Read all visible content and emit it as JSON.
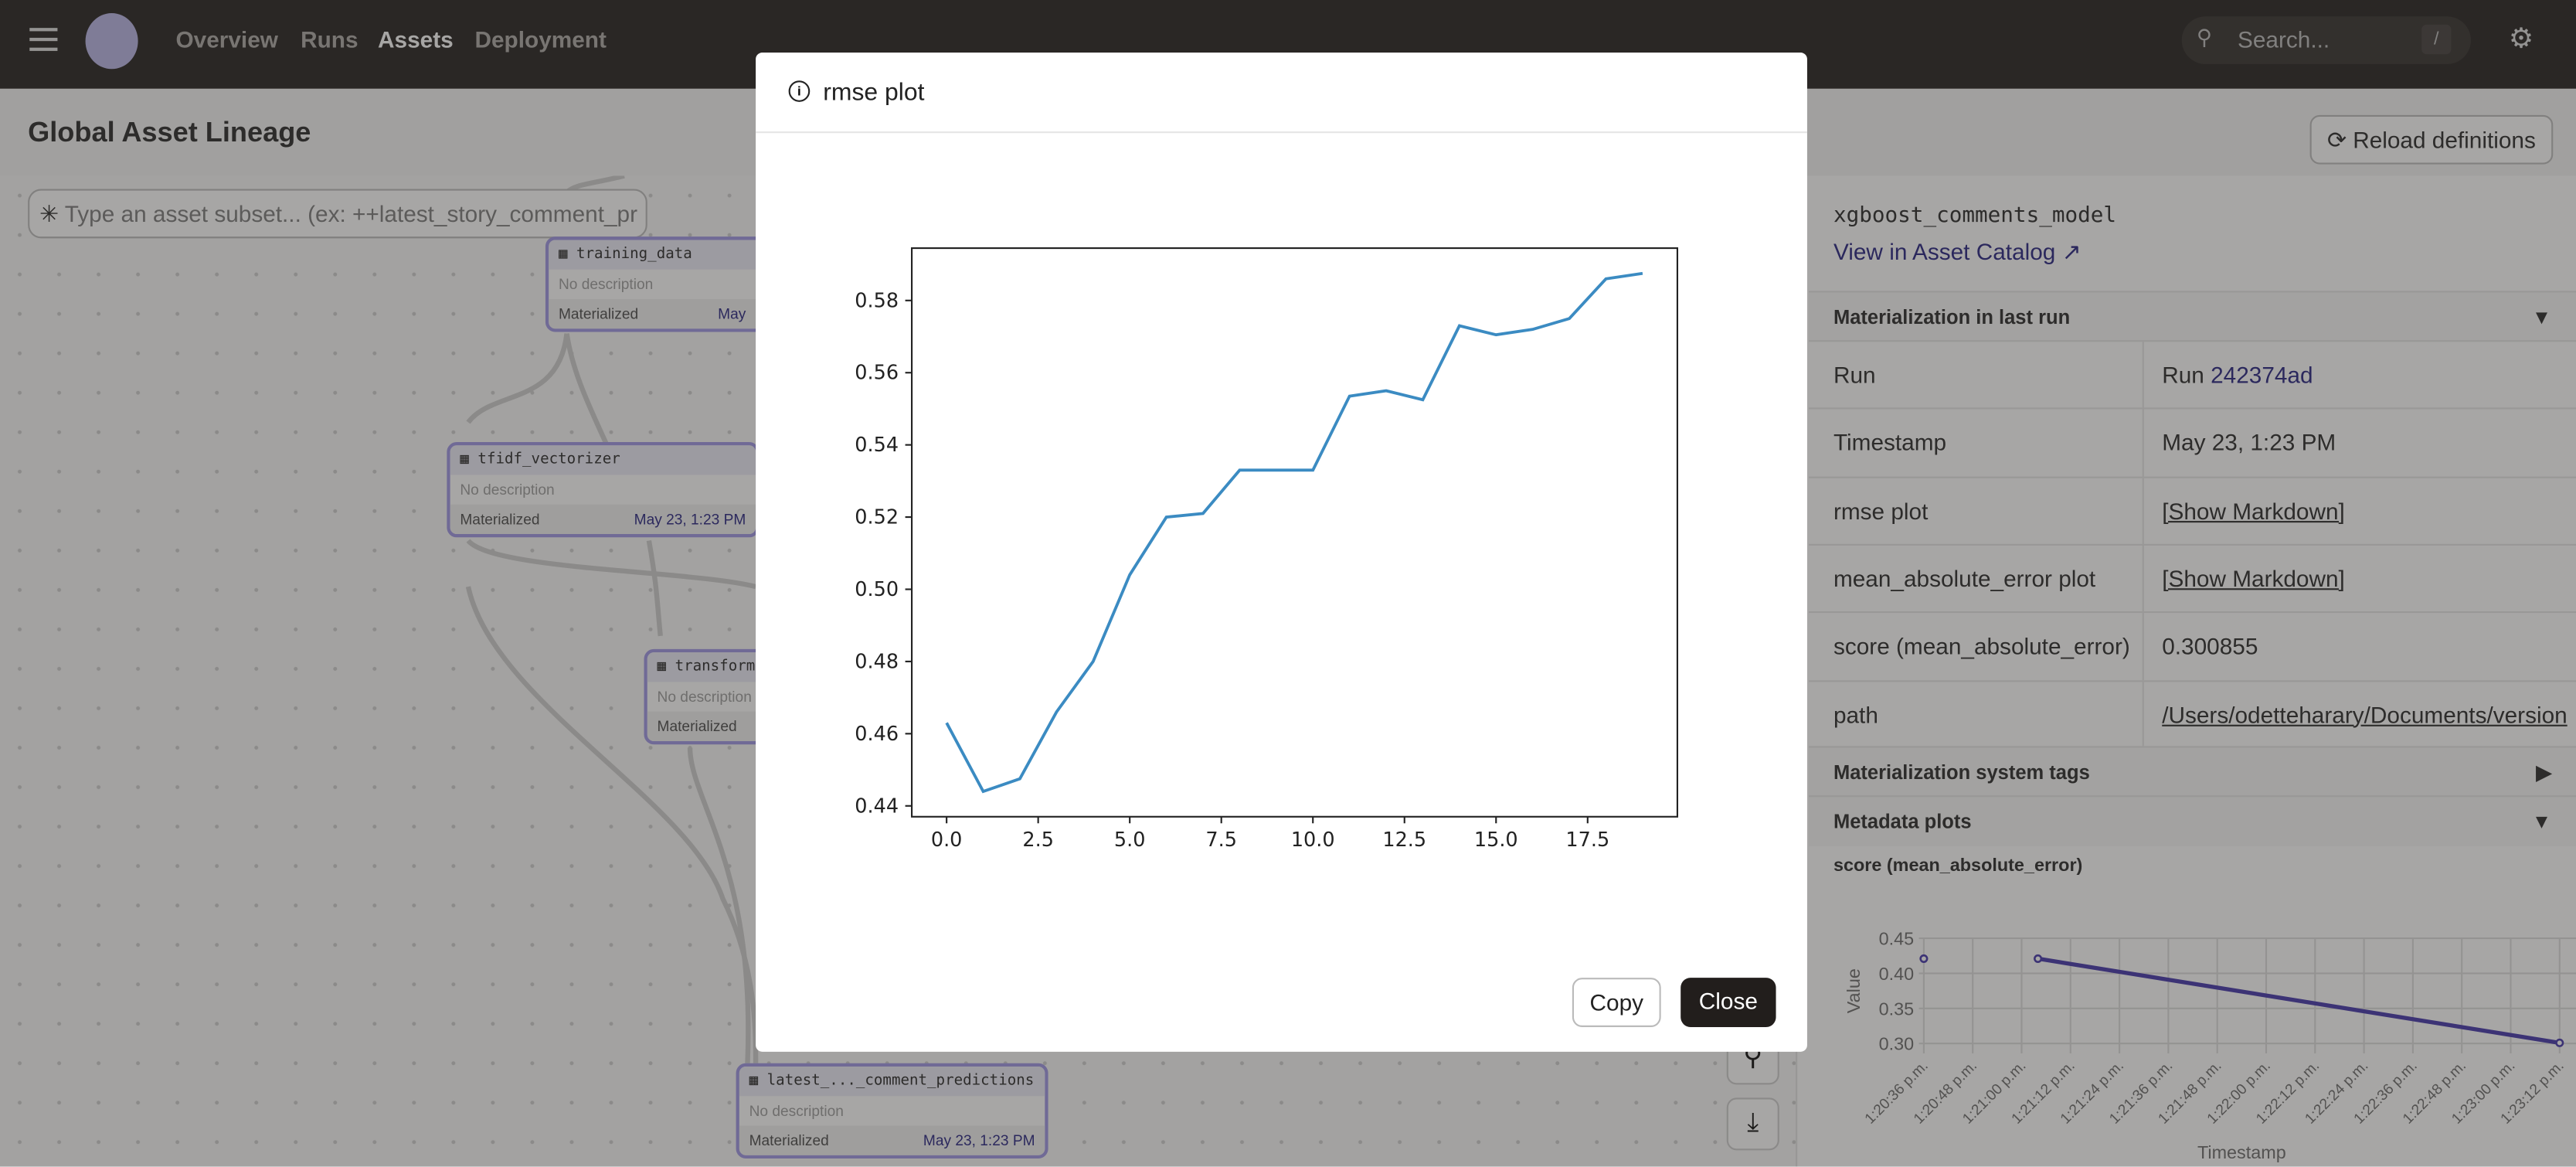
{
  "nav": {
    "items": [
      "Overview",
      "Runs",
      "Assets",
      "Deployment"
    ],
    "active": "Assets",
    "search_placeholder": "Search...",
    "search_shortcut": "/"
  },
  "page": {
    "title": "Global Asset Lineage",
    "filter_placeholder": "Type an asset subset... (ex: ++latest_story_comment_pr",
    "reload_label": "Reload definitions"
  },
  "nodes": [
    {
      "name": "training_data",
      "description": "No description",
      "status": "Materialized",
      "time": "May"
    },
    {
      "name": "tfidf_vectorizer",
      "description": "No description",
      "status": "Materialized",
      "time": "May 23, 1:23 PM"
    },
    {
      "name": "transform",
      "description": "No description",
      "status": "Materialized",
      "time": ""
    },
    {
      "name": "latest_..._comment_predictions",
      "description": "No description",
      "status": "Materialized",
      "time": "May 23, 1:23 PM"
    }
  ],
  "panel": {
    "asset_name": "xgboost_comments_model",
    "catalog_link": "View in Asset Catalog",
    "materialization_header": "Materialization in last run",
    "rows": [
      {
        "label": "Run",
        "prefix": "Run ",
        "value": "242374ad"
      },
      {
        "label": "Timestamp",
        "prefix": "",
        "value": "May 23, 1:23 PM"
      },
      {
        "label": "rmse plot",
        "prefix": "",
        "value": "[Show Markdown]"
      },
      {
        "label": "mean_absolute_error plot",
        "prefix": "",
        "value": "[Show Markdown]"
      },
      {
        "label": "score (mean_absolute_error)",
        "prefix": "",
        "value": "0.300855"
      },
      {
        "label": "path",
        "prefix": "",
        "value": "/Users/odetteharary/Documents/version"
      }
    ],
    "system_tags_header": "Materialization system tags",
    "plots_header": "Metadata plots",
    "plot_title": "score (mean_absolute_error)"
  },
  "modal": {
    "title": "rmse plot",
    "copy_label": "Copy",
    "close_label": "Close"
  },
  "chart_data": [
    {
      "type": "line",
      "title": "",
      "x": [
        0,
        1,
        2,
        3,
        4,
        5,
        6,
        7,
        8,
        9,
        10,
        11,
        12,
        13,
        14,
        15,
        16,
        17,
        18,
        19
      ],
      "values": [
        0.463,
        0.444,
        0.4475,
        0.466,
        0.48,
        0.504,
        0.52,
        0.521,
        0.533,
        0.533,
        0.533,
        0.5535,
        0.555,
        0.5525,
        0.573,
        0.5705,
        0.572,
        0.575,
        0.586,
        0.5875
      ],
      "xlim": [
        -0.95,
        19.95
      ],
      "ylim": [
        0.437,
        0.5945
      ],
      "xticks": [
        "0.0",
        "2.5",
        "5.0",
        "7.5",
        "10.0",
        "12.5",
        "15.0",
        "17.5"
      ],
      "yticks": [
        "0.44",
        "0.46",
        "0.48",
        "0.50",
        "0.52",
        "0.54",
        "0.56",
        "0.58"
      ],
      "color": "#3b8bc2",
      "grid": false
    },
    {
      "type": "line",
      "xlabel": "Timestamp",
      "ylabel": "Value",
      "points": [
        {
          "x": "1:20:36 p.m.",
          "y": 0.421
        },
        {
          "x": "1:21:04 p.m.",
          "y": 0.421
        },
        {
          "x": "1:23:12 p.m.",
          "y": 0.3009
        }
      ],
      "xticks": [
        "1:20:36 p.m.",
        "1:20:48 p.m.",
        "1:21:00 p.m.",
        "1:21:12 p.m.",
        "1:21:24 p.m.",
        "1:21:36 p.m.",
        "1:21:48 p.m.",
        "1:22:00 p.m.",
        "1:22:12 p.m.",
        "1:22:24 p.m.",
        "1:22:36 p.m.",
        "1:22:48 p.m.",
        "1:23:00 p.m.",
        "1:23:12 p.m."
      ],
      "yticks": [
        "0.45",
        "0.40",
        "0.35",
        "0.30"
      ],
      "ylim": [
        0.3,
        0.45
      ],
      "color": "#3c2ea8",
      "grid": true
    }
  ]
}
